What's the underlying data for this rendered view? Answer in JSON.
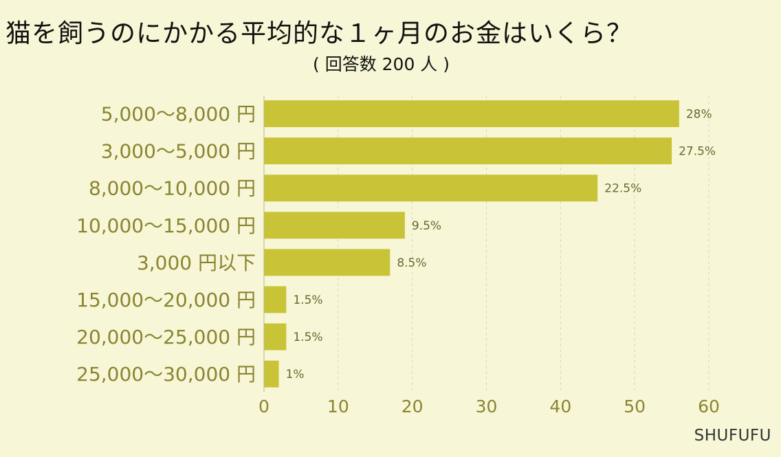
{
  "chart_data": {
    "type": "bar",
    "orientation": "horizontal",
    "title": "猫を飼うのにかかる平均的な１ヶ月のお金はいくら？",
    "subtitle": "( 回答数 200 人 )",
    "categories": [
      "5,000〜8,000 円",
      "3,000〜5,000 円",
      "8,000〜10,000 円",
      "10,000〜15,000 円",
      "3,000 円以下",
      "15,000〜20,000 円",
      "20,000〜25,000 円",
      "25,000〜30,000 円"
    ],
    "values": [
      56,
      55,
      45,
      19,
      17,
      3,
      3,
      2
    ],
    "data_labels": [
      "28%",
      "27.5%",
      "22.5%",
      "9.5%",
      "8.5%",
      "1.5%",
      "1.5%",
      "1%"
    ],
    "xlim": [
      0,
      60
    ],
    "xticks": [
      "0",
      "10",
      "20",
      "30",
      "40",
      "50",
      "60"
    ],
    "grid": "vertical-dashed",
    "colors": {
      "bar": "#c9c437",
      "category_label": "#8a8430",
      "tick_label": "#8a8430",
      "value_label": "#6b6530",
      "grid": "#d6d6c0"
    }
  },
  "footer": {
    "brand": "SHUFUFU"
  }
}
